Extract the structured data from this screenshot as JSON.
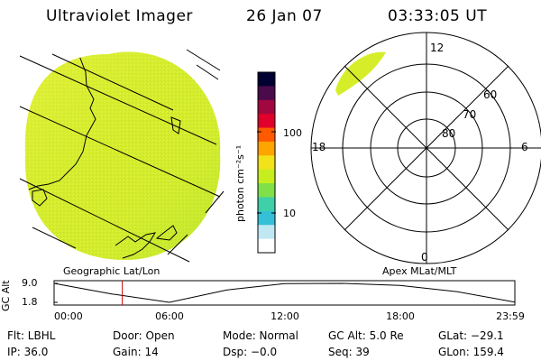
{
  "header": {
    "instrument": "Ultraviolet Imager",
    "date": "26 Jan 07",
    "time": "03:33:05 UT"
  },
  "left_panel": {
    "label": "Geographic Lat/Lon",
    "image_color": "#d6ee2a"
  },
  "colorbar": {
    "unit_label": "photon cm⁻²s⁻¹",
    "ticks": [
      "100",
      "10"
    ],
    "colors": [
      "#000033",
      "#4b0a4a",
      "#a1083f",
      "#e0002b",
      "#ff5a00",
      "#ffa500",
      "#f2e21a",
      "#c6ee1e",
      "#7fe04a",
      "#3fd0a8",
      "#35c0d8",
      "#bfe8f2",
      "#ffffff"
    ]
  },
  "polar_panel": {
    "label": "Apex MLat/MLT",
    "mlt_labels": {
      "top": "12",
      "left": "18",
      "right": "6",
      "bottom": "0"
    },
    "lat_labels": [
      "60",
      "70",
      "80"
    ]
  },
  "alt_plot": {
    "ylabel": "GC Alt",
    "y_ticks": [
      "9.0",
      "1.8"
    ],
    "x_ticks": [
      "00:00",
      "06:00",
      "12:00",
      "18:00",
      "23:59"
    ],
    "curve": [
      {
        "t": "00:00",
        "alt": 9.0
      },
      {
        "t": "03:00",
        "alt": 5.0
      },
      {
        "t": "06:00",
        "alt": 1.8
      },
      {
        "t": "09:00",
        "alt": 6.5
      },
      {
        "t": "12:00",
        "alt": 8.9
      },
      {
        "t": "15:00",
        "alt": 9.0
      },
      {
        "t": "18:00",
        "alt": 8.2
      },
      {
        "t": "21:00",
        "alt": 5.8
      },
      {
        "t": "23:59",
        "alt": 1.9
      }
    ],
    "current_time": "03:33"
  },
  "info": {
    "filter": "Flt: LBHL",
    "door": "Door: Open",
    "mode": "Mode: Normal",
    "gc_alt": "GC Alt: 5.0 Re",
    "glat": "GLat: −29.1",
    "ip": "IP: 36.0",
    "gain": "Gain: 14",
    "dsp": "Dsp:   −0.0",
    "seq": "Seq: 39",
    "glon": "GLon: 159.4"
  }
}
